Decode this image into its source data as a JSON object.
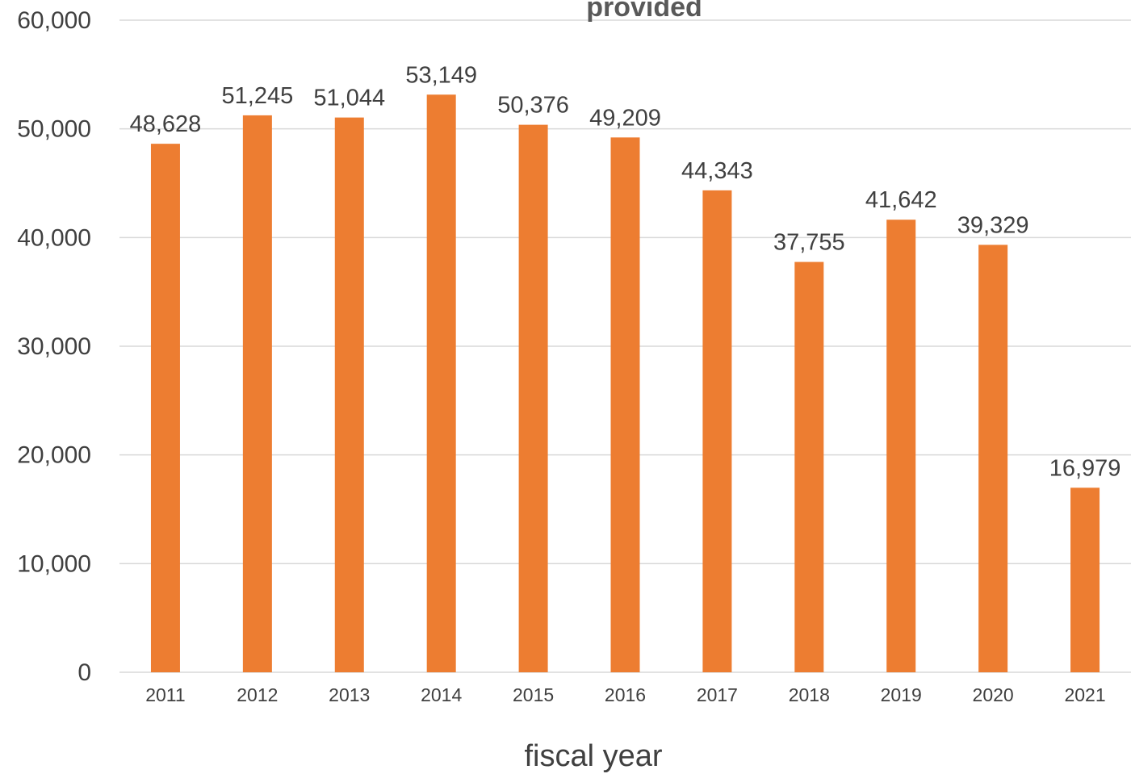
{
  "chart_data": {
    "type": "bar",
    "title": "provided",
    "xlabel": "fiscal year",
    "ylabel": "",
    "categories": [
      "2011",
      "2012",
      "2013",
      "2014",
      "2015",
      "2016",
      "2017",
      "2018",
      "2019",
      "2020",
      "2021"
    ],
    "values": [
      48628,
      51245,
      51044,
      53149,
      50376,
      49209,
      44343,
      37755,
      41642,
      39329,
      16979
    ],
    "data_labels": [
      "48,628",
      "51,245",
      "51,044",
      "53,149",
      "50,376",
      "49,209",
      "44,343",
      "37,755",
      "41,642",
      "39,329",
      "16,979"
    ],
    "ylim": [
      0,
      60000
    ],
    "yticks": [
      0,
      10000,
      20000,
      30000,
      40000,
      50000,
      60000
    ],
    "ytick_labels": [
      "0",
      "10,000",
      "20,000",
      "30,000",
      "40,000",
      "50,000",
      "60,000"
    ],
    "grid": true,
    "legend": "none",
    "colors": {
      "bar": "#ED7D31",
      "grid": "#D9D9D9",
      "text": "#404040",
      "title": "#595959"
    }
  }
}
